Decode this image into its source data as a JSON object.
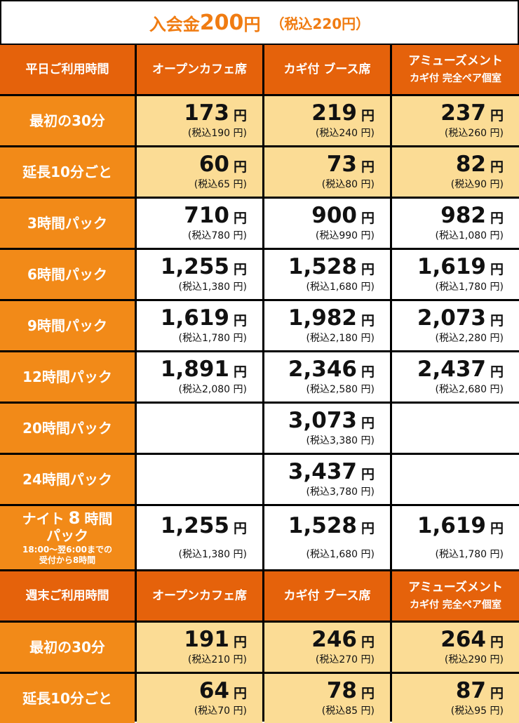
{
  "title": {
    "prefix": "入会金",
    "amount": "200",
    "unit": "円",
    "tax_note": "（税込220円）"
  },
  "yen": "円",
  "weekday": {
    "header": {
      "label": "平日ご利用時間",
      "col1": "オープンカフェ席",
      "col2": "カギ付 ブース席",
      "col3": "アミューズメント",
      "col3_sub": "カギ付 完全ペア個室"
    },
    "rows": [
      {
        "label": "最初の30分",
        "bg": "#fbdc95",
        "c1": {
          "price": "173",
          "tax": "(税込190 円)"
        },
        "c2": {
          "price": "219",
          "tax": "(税込240 円)"
        },
        "c3": {
          "price": "237",
          "tax": "(税込260 円)"
        }
      },
      {
        "label": "延長10分ごと",
        "bg": "#fbdc95",
        "c1": {
          "price": "60",
          "tax": "(税込65 円)"
        },
        "c2": {
          "price": "73",
          "tax": "(税込80 円)"
        },
        "c3": {
          "price": "82",
          "tax": "(税込90 円)"
        }
      },
      {
        "label": "3時間パック",
        "bg": "#ffffff",
        "c1": {
          "price": "710",
          "tax": "(税込780 円)"
        },
        "c2": {
          "price": "900",
          "tax": "(税込990 円)"
        },
        "c3": {
          "price": "982",
          "tax": "(税込1,080 円)"
        }
      },
      {
        "label": "6時間パック",
        "bg": "#ffffff",
        "c1": {
          "price": "1,255",
          "tax": "(税込1,380 円)"
        },
        "c2": {
          "price": "1,528",
          "tax": "(税込1,680 円)"
        },
        "c3": {
          "price": "1,619",
          "tax": "(税込1,780 円)"
        }
      },
      {
        "label": "9時間パック",
        "bg": "#ffffff",
        "c1": {
          "price": "1,619",
          "tax": "(税込1,780 円)"
        },
        "c2": {
          "price": "1,982",
          "tax": "(税込2,180 円)"
        },
        "c3": {
          "price": "2,073",
          "tax": "(税込2,280 円)"
        }
      },
      {
        "label": "12時間パック",
        "bg": "#ffffff",
        "c1": {
          "price": "1,891",
          "tax": "(税込2,080 円)"
        },
        "c2": {
          "price": "2,346",
          "tax": "(税込2,580 円)"
        },
        "c3": {
          "price": "2,437",
          "tax": "(税込2,680 円)"
        }
      },
      {
        "label": "20時間パック",
        "bg": "#ffffff",
        "c1": null,
        "c2": {
          "price": "3,073",
          "tax": "(税込3,380 円)"
        },
        "c3": null
      },
      {
        "label": "24時間パック",
        "bg": "#ffffff",
        "c1": null,
        "c2": {
          "price": "3,437",
          "tax": "(税込3,780 円)"
        },
        "c3": null
      }
    ],
    "night": {
      "label_line1_a": "ナイト",
      "label_line1_num": "8",
      "label_line1_b": "時間",
      "label_line2": "パック",
      "note_line1": "18:00〜翌6:00までの",
      "note_line2": "受付から8時間",
      "c1": {
        "price": "1,255",
        "tax": "(税込1,380 円)"
      },
      "c2": {
        "price": "1,528",
        "tax": "(税込1,680 円)"
      },
      "c3": {
        "price": "1,619",
        "tax": "(税込1,780 円)"
      }
    }
  },
  "weekend": {
    "header": {
      "label": "週末ご利用時間",
      "col1": "オープンカフェ席",
      "col2": "カギ付 ブース席",
      "col3": "アミューズメント",
      "col3_sub": "カギ付 完全ペア個室"
    },
    "rows": [
      {
        "label": "最初の30分",
        "bg": "#fbdc95",
        "c1": {
          "price": "191",
          "tax": "(税込210 円)"
        },
        "c2": {
          "price": "246",
          "tax": "(税込270 円)"
        },
        "c3": {
          "price": "264",
          "tax": "(税込290 円)"
        }
      },
      {
        "label": "延長10分ごと",
        "bg": "#fbdc95",
        "c1": {
          "price": "64",
          "tax": "(税込70 円)"
        },
        "c2": {
          "price": "78",
          "tax": "(税込85 円)"
        },
        "c3": {
          "price": "87",
          "tax": "(税込95 円)"
        }
      }
    ]
  },
  "colors": {
    "header": "#e5620b",
    "label": "#f28a18",
    "highlight": "#fbdc95",
    "title": "#f07c12"
  }
}
